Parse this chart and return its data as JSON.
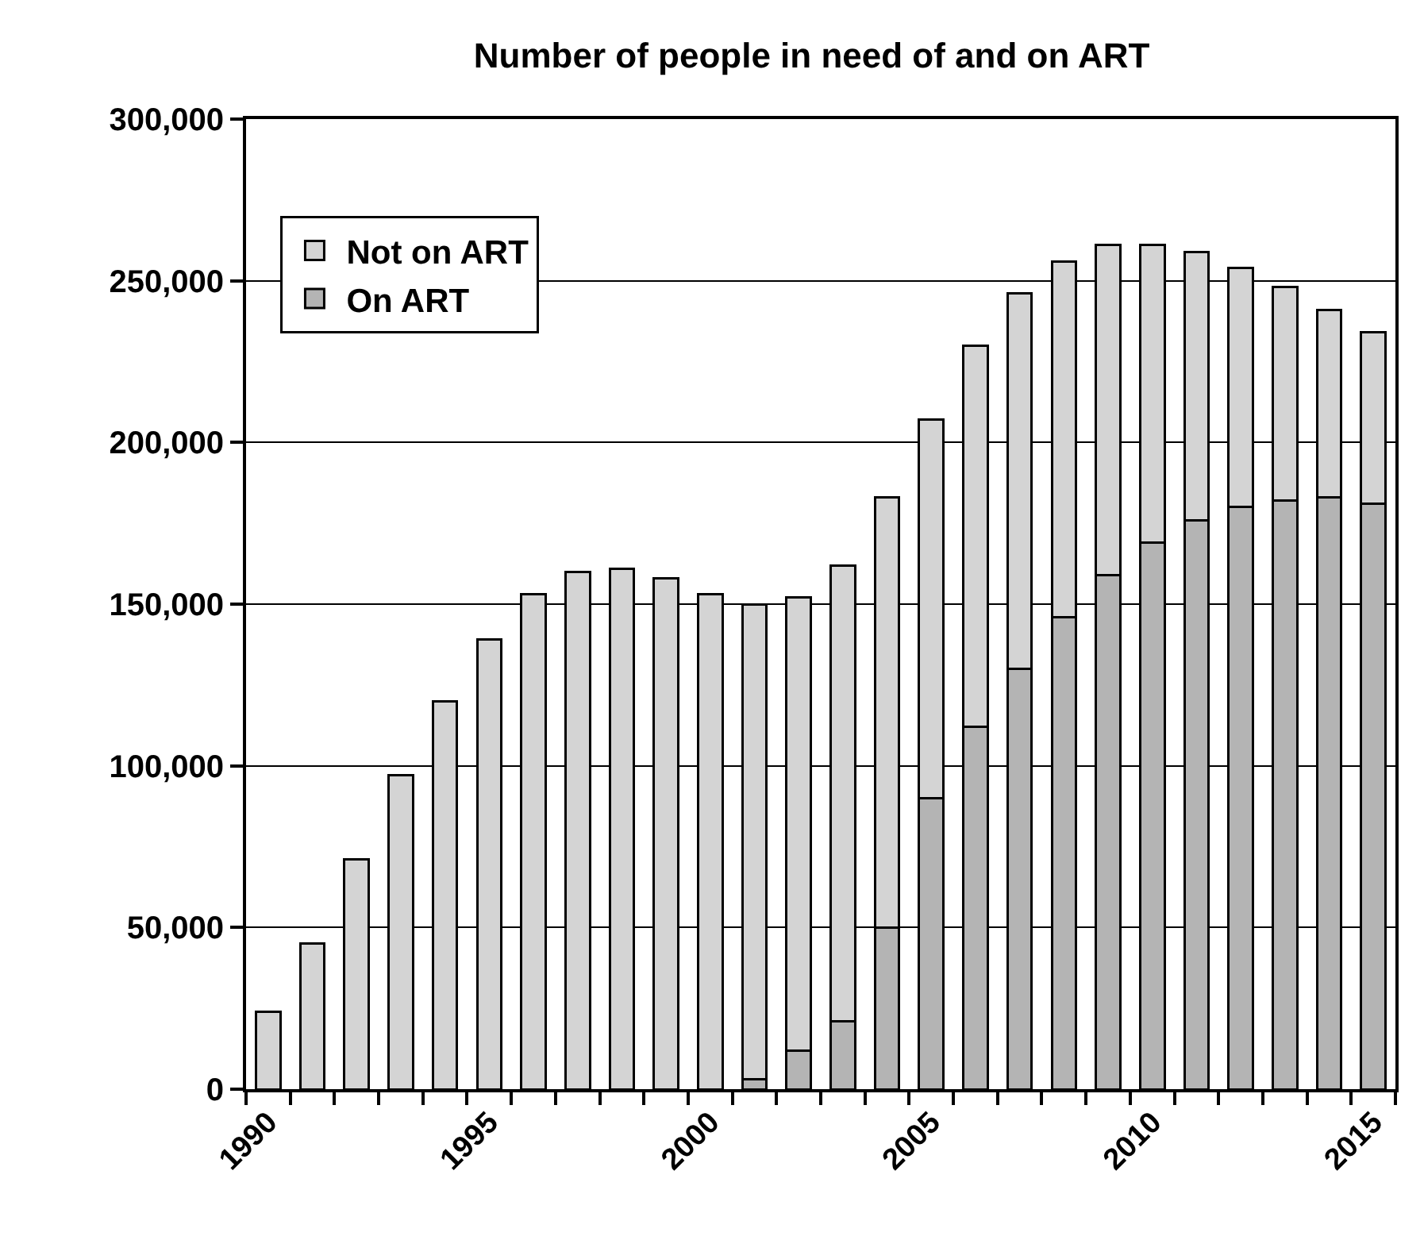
{
  "chart_data": {
    "type": "bar",
    "title": "Number of people in need of and on ART",
    "categories": [
      "1990",
      null,
      null,
      null,
      null,
      "1995",
      null,
      null,
      null,
      null,
      "2000",
      null,
      null,
      null,
      null,
      "2005",
      null,
      null,
      null,
      null,
      "2010",
      null,
      null,
      null,
      null,
      "2015"
    ],
    "stacked": true,
    "series": [
      {
        "name": "On ART",
        "color": "#b4b4b4",
        "values": [
          0,
          0,
          0,
          0,
          0,
          0,
          0,
          0,
          0,
          0,
          0,
          3000,
          12000,
          21000,
          50000,
          90000,
          112000,
          130000,
          146000,
          159000,
          169000,
          176000,
          180000,
          182000,
          183000,
          181000
        ]
      },
      {
        "name": "Not on ART",
        "color": "#d4d4d4",
        "values": [
          24000,
          45000,
          71000,
          97000,
          120000,
          139000,
          153000,
          160000,
          161000,
          158000,
          153000,
          147000,
          140000,
          141000,
          133000,
          117000,
          118000,
          116000,
          110000,
          102000,
          92000,
          83000,
          74000,
          66000,
          58000,
          53000
        ]
      }
    ],
    "ylim": [
      0,
      300000
    ],
    "yticks": [
      {
        "value": 0,
        "label": "0"
      },
      {
        "value": 50000,
        "label": "50,000"
      },
      {
        "value": 100000,
        "label": "100,000"
      },
      {
        "value": 150000,
        "label": "150,000"
      },
      {
        "value": 200000,
        "label": "200,000"
      },
      {
        "value": 250000,
        "label": "250,000"
      },
      {
        "value": 300000,
        "label": "300,000"
      }
    ],
    "grid": "y",
    "legend": "top left"
  }
}
